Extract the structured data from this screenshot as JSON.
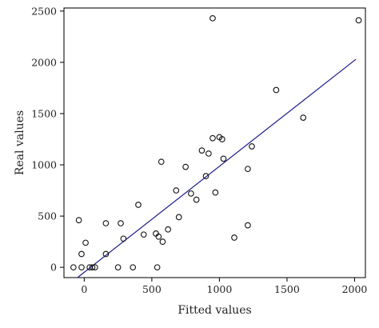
{
  "chart_data": {
    "type": "scatter",
    "xlabel": "Fitted values",
    "ylabel": "Real values",
    "xlim": [
      -150,
      2080
    ],
    "ylim": [
      -100,
      2530
    ],
    "xticks": [
      0,
      500,
      1000,
      1500,
      2000
    ],
    "yticks": [
      0,
      500,
      1000,
      1500,
      2000,
      2500
    ],
    "grid": false,
    "fit_line": {
      "x": [
        -50,
        2010
      ],
      "y": [
        -100,
        2030
      ],
      "color": "#1a1a8c"
    },
    "series": [
      {
        "points": [
          [
            -80,
            0
          ],
          [
            -40,
            460
          ],
          [
            -20,
            0
          ],
          [
            -20,
            130
          ],
          [
            10,
            240
          ],
          [
            40,
            0
          ],
          [
            60,
            0
          ],
          [
            80,
            0
          ],
          [
            160,
            130
          ],
          [
            160,
            430
          ],
          [
            250,
            0
          ],
          [
            270,
            430
          ],
          [
            290,
            280
          ],
          [
            360,
            0
          ],
          [
            400,
            610
          ],
          [
            440,
            320
          ],
          [
            530,
            330
          ],
          [
            540,
            0
          ],
          [
            550,
            300
          ],
          [
            570,
            1030
          ],
          [
            580,
            250
          ],
          [
            620,
            370
          ],
          [
            680,
            750
          ],
          [
            700,
            490
          ],
          [
            750,
            980
          ],
          [
            790,
            720
          ],
          [
            830,
            660
          ],
          [
            870,
            1140
          ],
          [
            900,
            890
          ],
          [
            920,
            1110
          ],
          [
            950,
            2430
          ],
          [
            950,
            1260
          ],
          [
            970,
            730
          ],
          [
            1000,
            1270
          ],
          [
            1020,
            1250
          ],
          [
            1030,
            1060
          ],
          [
            1110,
            290
          ],
          [
            1210,
            410
          ],
          [
            1210,
            960
          ],
          [
            1240,
            1180
          ],
          [
            1420,
            1730
          ],
          [
            1620,
            1460
          ],
          [
            2030,
            2410
          ]
        ]
      }
    ]
  }
}
